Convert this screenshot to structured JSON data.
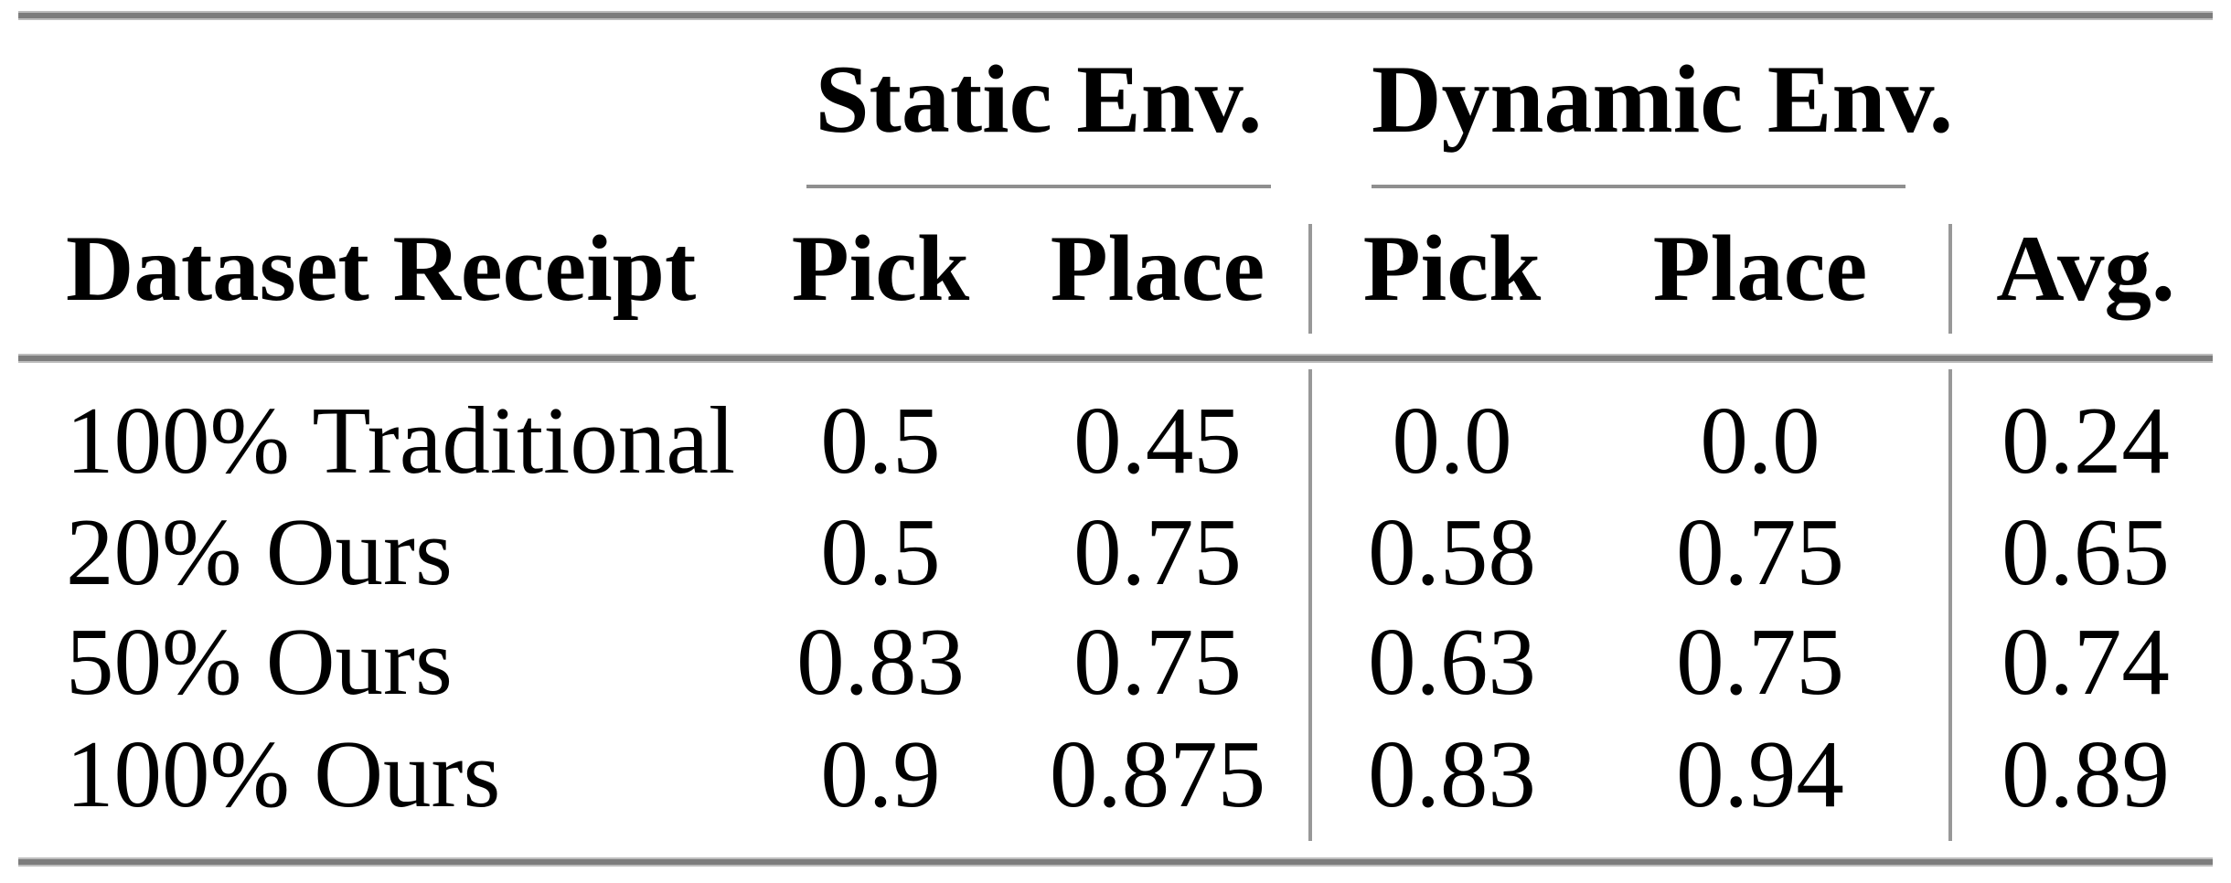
{
  "colors": {
    "background": "#ffffff",
    "text": "#000000",
    "rule_thick": "#7d7d7d",
    "rule_thin": "#8f8f8f",
    "divider": "#989898"
  },
  "table": {
    "column_groups": [
      {
        "label": "Static Env."
      },
      {
        "label": "Dynamic Env."
      }
    ],
    "header": {
      "row_label": "Dataset Receipt",
      "static_pick": "Pick",
      "static_place": "Place",
      "dynamic_pick": "Pick",
      "dynamic_place": "Place",
      "avg": "Avg."
    },
    "rows": [
      {
        "label": "100% Traditional",
        "static_pick": "0.5",
        "static_place": "0.45",
        "dynamic_pick": "0.0",
        "dynamic_place": "0.0",
        "avg": "0.24"
      },
      {
        "label": "20% Ours",
        "static_pick": "0.5",
        "static_place": "0.75",
        "dynamic_pick": "0.58",
        "dynamic_place": "0.75",
        "avg": "0.65"
      },
      {
        "label": "50% Ours",
        "static_pick": "0.83",
        "static_place": "0.75",
        "dynamic_pick": "0.63",
        "dynamic_place": "0.75",
        "avg": "0.74"
      },
      {
        "label": "100% Ours",
        "static_pick": "0.9",
        "static_place": "0.875",
        "dynamic_pick": "0.83",
        "dynamic_place": "0.94",
        "avg": "0.89"
      }
    ]
  }
}
